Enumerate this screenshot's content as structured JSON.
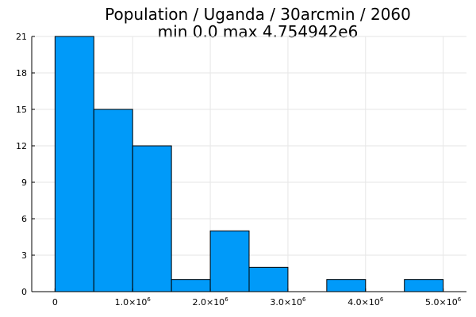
{
  "chart_data": {
    "type": "bar",
    "title": "Population / Uganda / 30arcmin / 2060",
    "subtitle": "min 0.0  max 4.754942e6",
    "xlabel": "",
    "ylabel": "",
    "bin_edges": [
      0,
      500000,
      1000000,
      1500000,
      2000000,
      2500000,
      3000000,
      3500000,
      4000000,
      4500000,
      5000000
    ],
    "values": [
      21,
      15,
      12,
      1,
      5,
      2,
      0,
      1,
      0,
      1
    ],
    "xlim": [
      -300000,
      5300000
    ],
    "ylim": [
      0,
      21
    ],
    "x_ticks": [
      {
        "value": 0,
        "mantissa": "0",
        "exp": ""
      },
      {
        "value": 1000000,
        "mantissa": "1.0×10",
        "exp": "6"
      },
      {
        "value": 2000000,
        "mantissa": "2.0×10",
        "exp": "6"
      },
      {
        "value": 3000000,
        "mantissa": "3.0×10",
        "exp": "6"
      },
      {
        "value": 4000000,
        "mantissa": "4.0×10",
        "exp": "6"
      },
      {
        "value": 5000000,
        "mantissa": "5.0×10",
        "exp": "6"
      }
    ],
    "y_ticks": [
      0,
      3,
      6,
      9,
      12,
      15,
      18,
      21
    ],
    "bar_color": "#009af9",
    "grid": true,
    "legend": "none"
  }
}
